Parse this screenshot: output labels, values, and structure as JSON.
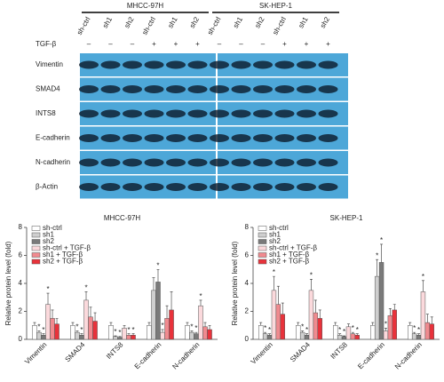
{
  "blot": {
    "cell_lines": [
      "MHCC-97H",
      "SK-HEP-1"
    ],
    "lanes": [
      "sh-ctrl",
      "sh1",
      "sh2",
      "sh-ctrl",
      "sh1",
      "sh2",
      "sh-ctrl",
      "sh1",
      "sh2",
      "sh-ctrl",
      "sh1",
      "sh2"
    ],
    "treatment_label": "TGF-β",
    "treatment": [
      "–",
      "–",
      "–",
      "+",
      "+",
      "+",
      "–",
      "–",
      "–",
      "+",
      "+",
      "+"
    ],
    "proteins": [
      "Vimentin",
      "SMAD4",
      "INTS8",
      "E-cadherin",
      "N-cadherin",
      "β-Actin"
    ]
  },
  "chart_data": [
    {
      "type": "bar",
      "title": "MHCC-97H",
      "y_label": "Relative protein level (fold)",
      "categories": [
        "Vimentin",
        "SMAD4",
        "INTS8",
        "E-cadherin",
        "N-cadherin"
      ],
      "ylim": [
        0,
        8
      ],
      "yticks": [
        0,
        2,
        4,
        6,
        8
      ],
      "legend": "top-left",
      "series": [
        {
          "name": "sh-ctrl",
          "color": "#ffffff",
          "values": [
            1.0,
            1.0,
            1.0,
            1.0,
            1.0
          ],
          "errors": [
            0.2,
            0.2,
            0.2,
            0.2,
            0.2
          ],
          "markers": [
            null,
            null,
            null,
            null,
            null
          ]
        },
        {
          "name": "sh1",
          "color": "#cfcfcf",
          "values": [
            0.5,
            0.5,
            0.2,
            3.5,
            0.5
          ],
          "errors": [
            0.1,
            0.1,
            0.05,
            0.9,
            0.1
          ],
          "markers": [
            "*",
            "*",
            "*",
            null,
            "*"
          ]
        },
        {
          "name": "sh2",
          "color": "#7a7a7a",
          "values": [
            0.3,
            0.3,
            0.15,
            4.1,
            0.4
          ],
          "errors": [
            0.1,
            0.1,
            0.05,
            0.9,
            0.1
          ],
          "markers": [
            "*",
            "*",
            "*",
            "*",
            "*"
          ]
        },
        {
          "name": "sh-ctrl + TGF-β",
          "color": "#fbd9dc",
          "values": [
            2.5,
            2.8,
            0.8,
            0.5,
            2.4
          ],
          "errors": [
            0.8,
            0.6,
            0.2,
            0.2,
            0.4
          ],
          "markers": [
            "*",
            "*",
            null,
            "*",
            "*"
          ]
        },
        {
          "name": "sh1 + TGF-β",
          "color": "#f08a8f",
          "values": [
            1.5,
            1.6,
            0.3,
            1.5,
            0.9
          ],
          "errors": [
            0.6,
            0.7,
            0.1,
            0.9,
            0.3
          ],
          "markers": [
            null,
            null,
            "*",
            null,
            null
          ]
        },
        {
          "name": "sh2 + TGF-β",
          "color": "#e8323b",
          "values": [
            1.1,
            1.3,
            0.3,
            2.1,
            0.7
          ],
          "errors": [
            0.4,
            0.6,
            0.1,
            1.3,
            0.3
          ],
          "markers": [
            null,
            null,
            "*",
            null,
            null
          ]
        }
      ]
    },
    {
      "type": "bar",
      "title": "SK-HEP-1",
      "y_label": "Relative protein level (fold)",
      "categories": [
        "Vimentin",
        "SMAD4",
        "INTS8",
        "E-cadherin",
        "N-cadherin"
      ],
      "ylim": [
        0,
        8
      ],
      "yticks": [
        0,
        2,
        4,
        6,
        8
      ],
      "legend": "top-left",
      "series": [
        {
          "name": "sh-ctrl",
          "color": "#ffffff",
          "values": [
            1.0,
            1.0,
            1.0,
            1.0,
            1.0
          ],
          "errors": [
            0.2,
            0.2,
            0.2,
            0.2,
            0.2
          ],
          "markers": [
            null,
            null,
            null,
            null,
            null
          ]
        },
        {
          "name": "sh1",
          "color": "#cfcfcf",
          "values": [
            0.4,
            0.5,
            0.3,
            4.5,
            0.4
          ],
          "errors": [
            0.1,
            0.1,
            0.1,
            1.2,
            0.1
          ],
          "markers": [
            "*",
            "*",
            "*",
            "*",
            "*"
          ]
        },
        {
          "name": "sh2",
          "color": "#7a7a7a",
          "values": [
            0.3,
            0.3,
            0.2,
            5.5,
            0.3
          ],
          "errors": [
            0.1,
            0.1,
            0.05,
            1.3,
            0.1
          ],
          "markers": [
            "*",
            "*",
            "*",
            "*",
            "*"
          ]
        },
        {
          "name": "sh-ctrl + TGF-β",
          "color": "#fbd9dc",
          "values": [
            3.5,
            3.5,
            0.9,
            0.6,
            3.4
          ],
          "errors": [
            1.0,
            0.8,
            0.2,
            0.2,
            0.8
          ],
          "markers": [
            "*",
            "*",
            null,
            "*",
            "*"
          ]
        },
        {
          "name": "sh1 + TGF-β",
          "color": "#f08a8f",
          "values": [
            2.5,
            1.9,
            0.4,
            1.7,
            1.2
          ],
          "errors": [
            1.3,
            0.9,
            0.1,
            0.5,
            0.6
          ],
          "markers": [
            null,
            null,
            "*",
            null,
            null
          ]
        },
        {
          "name": "sh2 + TGF-β",
          "color": "#e8323b",
          "values": [
            1.8,
            1.5,
            0.3,
            2.1,
            1.1
          ],
          "errors": [
            0.8,
            0.6,
            0.1,
            0.4,
            0.5
          ],
          "markers": [
            null,
            null,
            "*",
            null,
            null
          ]
        }
      ]
    }
  ]
}
